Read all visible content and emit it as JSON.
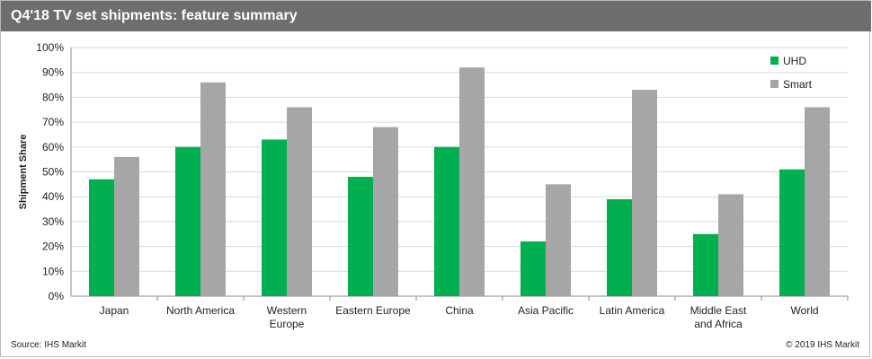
{
  "header": {
    "title": "Q4'18 TV set shipments: feature summary"
  },
  "footer": {
    "source": "Source: IHS Markit",
    "copyright": "© 2019 IHS Markit"
  },
  "colors": {
    "uhd": "#00b050",
    "smart": "#a6a6a6",
    "title_bar": "#6e6e6e",
    "grid": "#d9d9d9"
  },
  "chart_data": {
    "type": "bar",
    "title": "Q4'18 TV set shipments: feature summary",
    "xlabel": "",
    "ylabel": "Shipment Share",
    "ylim": [
      0,
      100
    ],
    "y_ticks": [
      "0%",
      "10%",
      "20%",
      "30%",
      "40%",
      "50%",
      "60%",
      "70%",
      "80%",
      "90%",
      "100%"
    ],
    "y_unit": "%",
    "grid": true,
    "legend_position": "top-right",
    "categories": [
      [
        "Japan"
      ],
      [
        "North America"
      ],
      [
        "Western",
        "Europe"
      ],
      [
        "Eastern Europe"
      ],
      [
        "China"
      ],
      [
        "Asia Pacific"
      ],
      [
        "Latin America"
      ],
      [
        "Middle East",
        "and Africa"
      ],
      [
        "World"
      ]
    ],
    "series": [
      {
        "name": "UHD",
        "color": "#00b050",
        "values": [
          47,
          60,
          63,
          48,
          60,
          22,
          39,
          25,
          51
        ]
      },
      {
        "name": "Smart",
        "color": "#a6a6a6",
        "values": [
          56,
          86,
          76,
          68,
          92,
          45,
          83,
          41,
          76
        ]
      }
    ]
  }
}
